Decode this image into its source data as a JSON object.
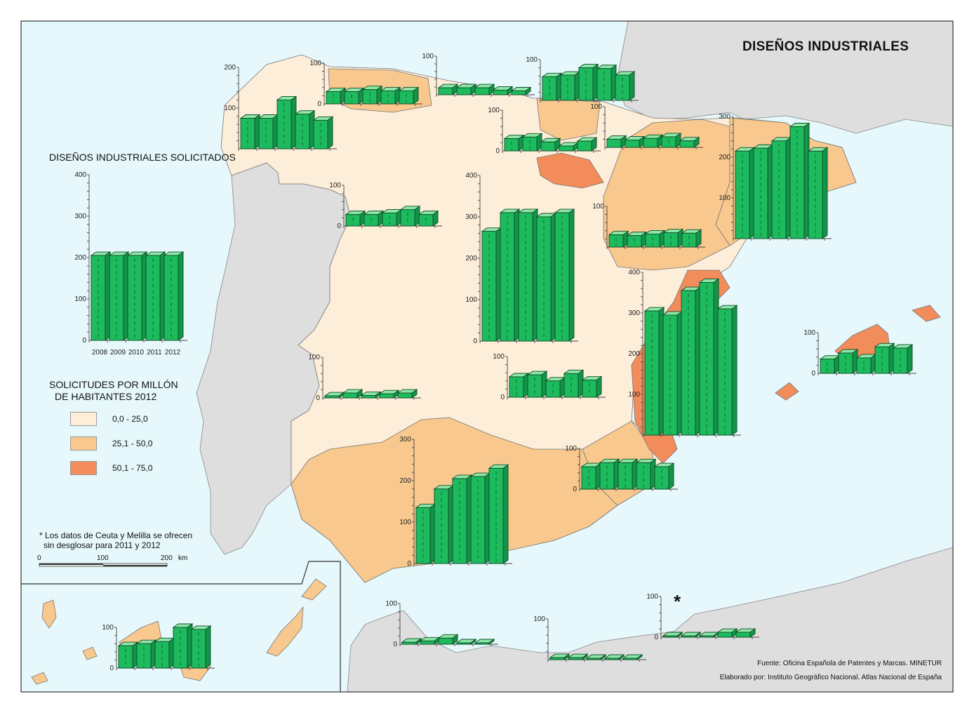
{
  "title": "DISEÑOS INDUSTRIALES",
  "national_chart_heading": "DISEÑOS INDUSTRIALES SOLICITADOS",
  "legend": {
    "title_line1": "SOLICITUDES POR MILLÓN",
    "title_line2": "DE HABITANTES 2012",
    "classes": [
      {
        "label": "0,0 - 25,0",
        "color": "#fdeeda"
      },
      {
        "label": "25,1 - 50,0",
        "color": "#f8c88e"
      },
      {
        "label": "50,1 - 75,0",
        "color": "#f28c5b"
      }
    ]
  },
  "note": {
    "line1": "* Los datos de Ceuta y Melilla se ofrecen",
    "line2": "sin desglosar para 2011 y 2012"
  },
  "scale_bar": {
    "labels": [
      "0",
      "100",
      "200"
    ],
    "unit": "km"
  },
  "source": "Fuente: Oficina Española de Patentes y Marcas. MINETUR",
  "credit": "Elaborado por: Instituto Geográfico Nacional. Atlas Nacional de España",
  "melilla_marker": "*",
  "chart_data": [
    {
      "type": "bar",
      "region": "España",
      "categories": [
        "2008",
        "2009",
        "2010",
        "2011",
        "2012"
      ],
      "values": [
        205,
        205,
        205,
        205,
        205
      ],
      "ylim": [
        0,
        400
      ],
      "yticks": [
        "0",
        "100",
        "200",
        "300",
        "400"
      ]
    },
    {
      "type": "bar",
      "region": "Galicia",
      "values": [
        75,
        75,
        120,
        85,
        70
      ],
      "ylim": [
        0,
        200
      ],
      "yticks": [
        "100",
        "200"
      ]
    },
    {
      "type": "bar",
      "region": "Asturias",
      "values": [
        30,
        30,
        35,
        32,
        32
      ],
      "ylim": [
        0,
        100
      ],
      "yticks": [
        "0",
        "100"
      ]
    },
    {
      "type": "bar",
      "region": "Cantabria",
      "values": [
        18,
        18,
        18,
        12,
        10
      ],
      "ylim": [
        0,
        100
      ],
      "yticks": [
        "100"
      ]
    },
    {
      "type": "bar",
      "region": "País Vasco",
      "values": [
        58,
        62,
        80,
        78,
        62
      ],
      "ylim": [
        0,
        100
      ],
      "yticks": [
        "100"
      ]
    },
    {
      "type": "bar",
      "region": "Castilla y León",
      "values": [
        28,
        28,
        32,
        40,
        28
      ],
      "ylim": [
        0,
        100
      ],
      "yticks": [
        "0",
        "100"
      ]
    },
    {
      "type": "bar",
      "region": "La Rioja",
      "values": [
        30,
        34,
        22,
        12,
        24
      ],
      "ylim": [
        0,
        100
      ],
      "yticks": [
        "0",
        "100"
      ]
    },
    {
      "type": "bar",
      "region": "Navarra",
      "values": [
        20,
        18,
        22,
        26,
        16
      ],
      "ylim": [
        0,
        100
      ],
      "yticks": [
        "100"
      ]
    },
    {
      "type": "bar",
      "region": "Aragón",
      "values": [
        30,
        28,
        32,
        35,
        34
      ],
      "ylim": [
        0,
        100
      ],
      "yticks": [
        "100"
      ]
    },
    {
      "type": "bar",
      "region": "Cataluña",
      "values": [
        215,
        222,
        240,
        275,
        215
      ],
      "ylim": [
        0,
        300
      ],
      "yticks": [
        "100",
        "200",
        "300"
      ]
    },
    {
      "type": "bar",
      "region": "Comunidad de Madrid",
      "values": [
        265,
        310,
        310,
        300,
        310
      ],
      "ylim": [
        0,
        400
      ],
      "yticks": [
        "0",
        "100",
        "200",
        "300",
        "400"
      ]
    },
    {
      "type": "bar",
      "region": "Extremadura",
      "values": [
        5,
        12,
        6,
        10,
        12
      ],
      "ylim": [
        0,
        100
      ],
      "yticks": [
        "0",
        "100"
      ]
    },
    {
      "type": "bar",
      "region": "Castilla-La Mancha",
      "values": [
        50,
        55,
        40,
        58,
        42
      ],
      "ylim": [
        0,
        100
      ],
      "yticks": [
        "0",
        "100"
      ]
    },
    {
      "type": "bar",
      "region": "Comunitat Valenciana",
      "values": [
        305,
        295,
        355,
        375,
        310
      ],
      "ylim": [
        0,
        400
      ],
      "yticks": [
        "100",
        "200",
        "300",
        "400"
      ]
    },
    {
      "type": "bar",
      "region": "Illes Balears",
      "values": [
        35,
        50,
        38,
        65,
        62
      ],
      "ylim": [
        0,
        100
      ],
      "yticks": [
        "0",
        "100"
      ]
    },
    {
      "type": "bar",
      "region": "Andalucía",
      "values": [
        135,
        180,
        205,
        210,
        230
      ],
      "ylim": [
        0,
        300
      ],
      "yticks": [
        "0",
        "100",
        "200",
        "300"
      ]
    },
    {
      "type": "bar",
      "region": "Región de Murcia",
      "values": [
        55,
        65,
        65,
        65,
        55
      ],
      "ylim": [
        0,
        100
      ],
      "yticks": [
        "0",
        "100"
      ]
    },
    {
      "type": "bar",
      "region": "Canarias",
      "values": [
        55,
        60,
        65,
        100,
        95
      ],
      "ylim": [
        0,
        100
      ],
      "yticks": [
        "0",
        "100"
      ]
    },
    {
      "type": "bar",
      "region": "Ceuta",
      "values": [
        5,
        8,
        15,
        0,
        0
      ],
      "ylim": [
        0,
        100
      ],
      "yticks": [
        "0",
        "100"
      ]
    },
    {
      "type": "bar",
      "region": "Melilla",
      "values": [
        5,
        5,
        0,
        0,
        0
      ],
      "ylim": [
        0,
        100
      ],
      "yticks": [
        "100"
      ]
    },
    {
      "type": "bar",
      "region": "Ceuta y Melilla",
      "values": [
        0,
        0,
        0,
        12,
        12
      ],
      "ylim": [
        0,
        100
      ],
      "yticks": [
        "0",
        "100"
      ]
    }
  ]
}
